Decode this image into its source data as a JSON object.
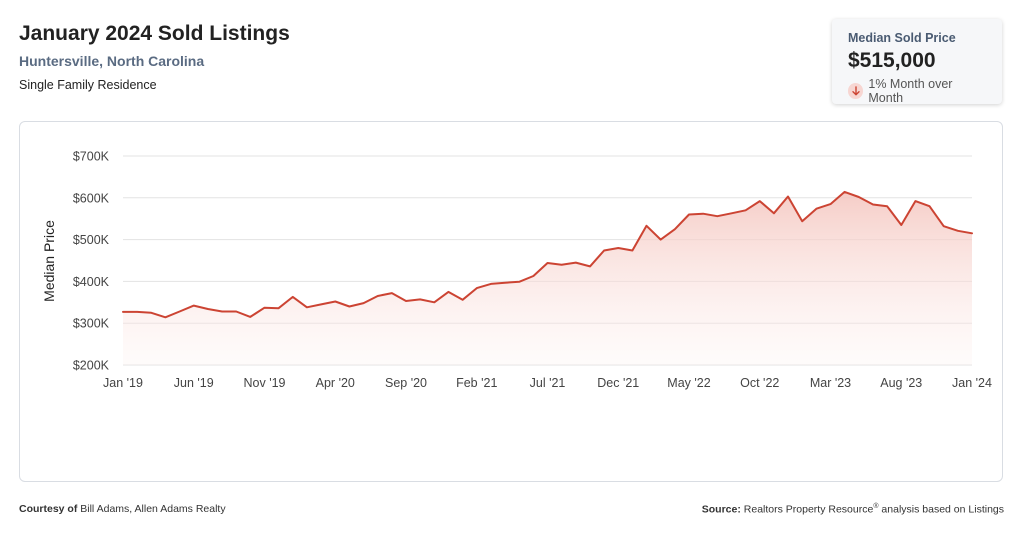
{
  "header": {
    "title": "January 2024 Sold Listings",
    "location": "Huntersville, North Carolina",
    "property_type": "Single Family Residence"
  },
  "stat_card": {
    "label": "Median Sold Price",
    "value": "$515,000",
    "change": "1% Month over Month",
    "change_direction": "down",
    "icon": "arrow-down-icon"
  },
  "footer": {
    "courtesy_prefix": "Courtesy of",
    "courtesy_text": "Bill Adams, Allen Adams Realty",
    "source_prefix": "Source:",
    "source_text": "Realtors Property Resource",
    "source_mark": "®",
    "source_suffix": "analysis based on Listings"
  },
  "colors": {
    "line": "#cc4433",
    "fill_top": "#f4c4bd",
    "grid": "#e3e3e3",
    "accent_text": "#5a6b82"
  },
  "chart_data": {
    "type": "area",
    "title": "",
    "xlabel": "",
    "ylabel": "Median Price",
    "ylim": [
      200000,
      700000
    ],
    "yticks": [
      {
        "value": 200000,
        "label": "$200K"
      },
      {
        "value": 300000,
        "label": "$300K"
      },
      {
        "value": 400000,
        "label": "$400K"
      },
      {
        "value": 500000,
        "label": "$500K"
      },
      {
        "value": 600000,
        "label": "$600K"
      },
      {
        "value": 700000,
        "label": "$700K"
      }
    ],
    "xticks": [
      {
        "index": 0,
        "label": "Jan '19"
      },
      {
        "index": 5,
        "label": "Jun '19"
      },
      {
        "index": 10,
        "label": "Nov '19"
      },
      {
        "index": 15,
        "label": "Apr '20"
      },
      {
        "index": 20,
        "label": "Sep '20"
      },
      {
        "index": 25,
        "label": "Feb '21"
      },
      {
        "index": 30,
        "label": "Jul '21"
      },
      {
        "index": 35,
        "label": "Dec '21"
      },
      {
        "index": 40,
        "label": "May '22"
      },
      {
        "index": 45,
        "label": "Oct '22"
      },
      {
        "index": 50,
        "label": "Mar '23"
      },
      {
        "index": 55,
        "label": "Aug '23"
      },
      {
        "index": 60,
        "label": "Jan '24"
      }
    ],
    "series": [
      {
        "name": "Median Sold Price",
        "values": [
          327000,
          327000,
          325000,
          314000,
          328000,
          342000,
          334000,
          328000,
          328000,
          315000,
          337000,
          336000,
          363000,
          338000,
          345000,
          352000,
          340000,
          348000,
          365000,
          372000,
          353000,
          357000,
          350000,
          375000,
          356000,
          384000,
          394000,
          397000,
          399000,
          413000,
          444000,
          440000,
          445000,
          436000,
          474000,
          480000,
          474000,
          533000,
          500000,
          525000,
          560000,
          562000,
          556000,
          563000,
          570000,
          592000,
          563000,
          603000,
          544000,
          574000,
          585000,
          614000,
          602000,
          584000,
          580000,
          535000,
          592000,
          580000,
          532000,
          521000,
          515000
        ]
      }
    ]
  }
}
